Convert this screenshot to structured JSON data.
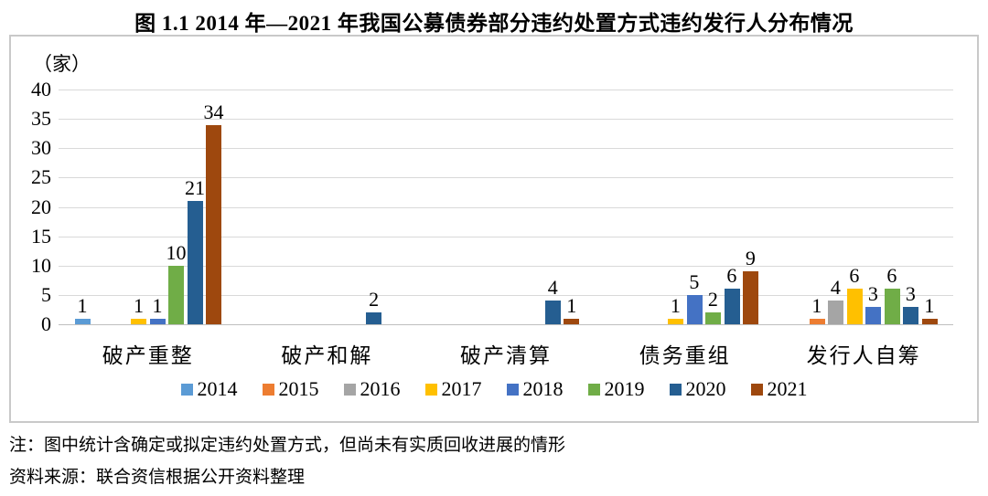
{
  "title": "图 1.1  2014 年—2021 年我国公募债券部分违约处置方式违约发行人分布情况",
  "notes": {
    "note": "注：图中统计含确定或拟定违约处置方式，但尚未有实质回收进展的情形",
    "source": "资料来源：联合资信根据公开资料整理"
  },
  "chart_data": {
    "type": "bar",
    "title": "图 1.1  2014 年—2021 年我国公募债券部分违约处置方式违约发行人分布情况",
    "unit_label": "（家）",
    "categories": [
      "破产重整",
      "破产和解",
      "破产清算",
      "债务重组",
      "发行人自筹"
    ],
    "series": [
      {
        "name": "2014",
        "color": "#5B9BD5",
        "values": [
          1,
          0,
          0,
          0,
          0
        ]
      },
      {
        "name": "2015",
        "color": "#ED7D31",
        "values": [
          0,
          0,
          0,
          0,
          1
        ]
      },
      {
        "name": "2016",
        "color": "#A5A5A5",
        "values": [
          0,
          0,
          0,
          0,
          4
        ]
      },
      {
        "name": "2017",
        "color": "#FFC000",
        "values": [
          1,
          0,
          0,
          1,
          6
        ]
      },
      {
        "name": "2018",
        "color": "#4472C4",
        "values": [
          1,
          0,
          0,
          5,
          3
        ]
      },
      {
        "name": "2019",
        "color": "#70AD47",
        "values": [
          10,
          0,
          0,
          2,
          6
        ]
      },
      {
        "name": "2020",
        "color": "#255E91",
        "values": [
          21,
          2,
          4,
          6,
          3
        ]
      },
      {
        "name": "2021",
        "color": "#9E480E",
        "values": [
          34,
          0,
          1,
          9,
          1
        ]
      }
    ],
    "ylim": [
      0,
      40
    ],
    "yticks": [
      0,
      5,
      10,
      15,
      20,
      25,
      30,
      35,
      40
    ],
    "grid": true,
    "legend_position": "bottom",
    "data_labels": "shown above bars, zero values omitted",
    "gridline_color": "#D9D9D9",
    "frame_border_color": "#C9C9C9"
  }
}
